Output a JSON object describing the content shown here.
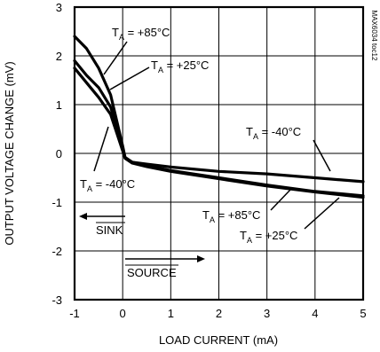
{
  "chart_data": {
    "type": "line",
    "title": "",
    "xlabel": "LOAD CURRENT (mA)",
    "ylabel": "OUTPUT VOLTAGE CHANGE (mV)",
    "xlim": [
      -1,
      5
    ],
    "ylim": [
      -3,
      3
    ],
    "x_ticks": [
      "-1",
      "0",
      "1",
      "2",
      "3",
      "4",
      "5"
    ],
    "y_ticks": [
      "3",
      "2",
      "1",
      "0",
      "-1",
      "-2",
      "-3"
    ],
    "grid": true,
    "series": [
      {
        "name": "TA = +85°C",
        "label_main": "T",
        "label_sub": "A",
        "label_rest": " = +85°C",
        "x": [
          -1,
          -0.75,
          -0.5,
          -0.25,
          0,
          0.05,
          0.2,
          0.5,
          1,
          2,
          3,
          4,
          5
        ],
        "y": [
          2.4,
          2.15,
          1.75,
          1.2,
          0.15,
          -0.08,
          -0.18,
          -0.25,
          -0.35,
          -0.5,
          -0.65,
          -0.78,
          -0.87
        ]
      },
      {
        "name": "TA = +25°C",
        "label_main": "T",
        "label_sub": "A",
        "label_rest": " = +25°C",
        "x": [
          -1,
          -0.75,
          -0.5,
          -0.25,
          0,
          0.05,
          0.2,
          0.5,
          1,
          2,
          3,
          4,
          5
        ],
        "y": [
          1.9,
          1.6,
          1.35,
          0.95,
          0.1,
          -0.1,
          -0.2,
          -0.27,
          -0.37,
          -0.52,
          -0.67,
          -0.79,
          -0.9
        ]
      },
      {
        "name": "TA = -40°C",
        "label_main": "T",
        "label_sub": "A",
        "label_rest": " = -40°C",
        "x": [
          -1,
          -0.75,
          -0.5,
          -0.25,
          0,
          0.05,
          0.2,
          0.5,
          1,
          2,
          3,
          4,
          5
        ],
        "y": [
          1.75,
          1.45,
          1.15,
          0.8,
          0.05,
          -0.1,
          -0.18,
          -0.22,
          -0.28,
          -0.37,
          -0.42,
          -0.5,
          -0.58
        ]
      }
    ],
    "annotations": {
      "sink": "SINK",
      "source": "SOURCE"
    },
    "chart_code": "MAX6034 toc12"
  }
}
